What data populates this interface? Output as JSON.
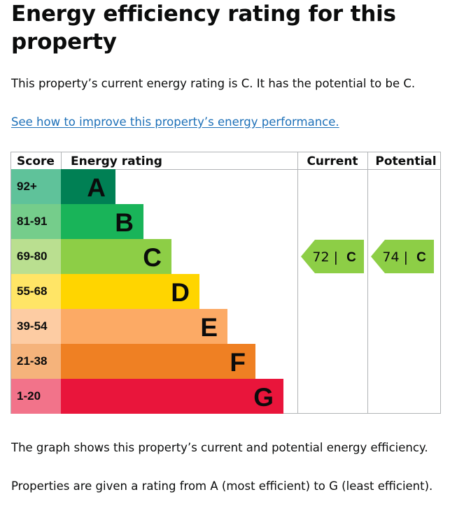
{
  "page": {
    "heading": "Energy efficiency rating for this property",
    "intro": "This property’s current energy rating is C. It has the potential to be C.",
    "link_text": "See how to improve this property’s energy performance.",
    "note_graph": "The graph shows this property’s current and potential energy efficiency.",
    "note_scale": "Properties are given a rating from A (most efficient) to G (least efficient)."
  },
  "chart_data": {
    "type": "table",
    "columns": [
      "Score",
      "Energy rating",
      "Current",
      "Potential"
    ],
    "bands": [
      {
        "score": "92+",
        "letter": "A",
        "color": "#008054",
        "score_color": "#5fc29a"
      },
      {
        "score": "81-91",
        "letter": "B",
        "color": "#19b459",
        "score_color": "#75cd8b"
      },
      {
        "score": "69-80",
        "letter": "C",
        "color": "#8dce46",
        "score_color": "#badf90"
      },
      {
        "score": "55-68",
        "letter": "D",
        "color": "#ffd500",
        "score_color": "#ffe566"
      },
      {
        "score": "39-54",
        "letter": "E",
        "color": "#fcaa65",
        "score_color": "#fdcca3"
      },
      {
        "score": "21-38",
        "letter": "F",
        "color": "#ef8023",
        "score_color": "#f5b37b"
      },
      {
        "score": "1-20",
        "letter": "G",
        "color": "#e9153b",
        "score_color": "#f2738a"
      }
    ],
    "current": {
      "value": 72,
      "band": "C",
      "label": "72 |",
      "letter": "C",
      "color": "#8dce46"
    },
    "potential": {
      "value": 74,
      "band": "C",
      "label": "74 |",
      "letter": "C",
      "color": "#8dce46"
    }
  }
}
